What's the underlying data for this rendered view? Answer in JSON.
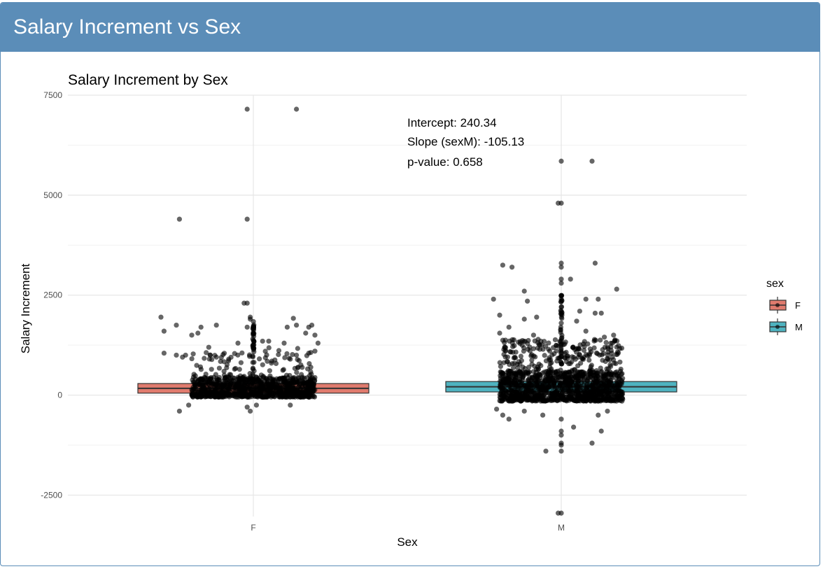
{
  "header": {
    "title": "Salary Increment vs Sex"
  },
  "chart_data": {
    "type": "boxplot",
    "title": "Salary Increment by Sex",
    "xlabel": "Sex",
    "ylabel": "Salary Increment",
    "categories": [
      "F",
      "M"
    ],
    "ylim": [
      -3000,
      7500
    ],
    "yticks": [
      -2500,
      0,
      2500,
      5000,
      7500
    ],
    "grid": true,
    "legend": {
      "title": "sex",
      "position": "right",
      "entries": [
        "F",
        "M"
      ]
    },
    "colors": {
      "F": "#e07b6e",
      "M": "#4fb3c0",
      "points": "#000000"
    },
    "boxes": [
      {
        "category": "F",
        "q1": 50,
        "median": 170,
        "q3": 290
      },
      {
        "category": "M",
        "q1": 80,
        "median": 210,
        "q3": 340
      }
    ],
    "annotations": [
      "Intercept: 240.34",
      "Slope (sexM): -105.13",
      "p-value: 0.658"
    ],
    "outliers": {
      "F": [
        [
          -0.02,
          7150
        ],
        [
          0.14,
          7150
        ],
        [
          -0.24,
          4400
        ],
        [
          -0.02,
          4400
        ],
        [
          -0.03,
          2300
        ],
        [
          -0.02,
          2300
        ],
        [
          -0.3,
          1950
        ],
        [
          -0.01,
          1950
        ],
        [
          -0.01,
          1900
        ],
        [
          0.13,
          1920
        ],
        [
          0.14,
          1750
        ],
        [
          0.18,
          1700
        ],
        [
          0.19,
          1750
        ],
        [
          -0.25,
          1750
        ],
        [
          -0.17,
          1700
        ],
        [
          -0.12,
          1750
        ],
        [
          -0.02,
          1700
        ],
        [
          0.11,
          1700
        ],
        [
          -0.29,
          1600
        ],
        [
          -0.2,
          1500
        ],
        [
          -0.18,
          1550
        ],
        [
          0.17,
          1550
        ],
        [
          0.2,
          1500
        ],
        [
          -0.05,
          1300
        ],
        [
          0.03,
          1350
        ],
        [
          0.05,
          1350
        ],
        [
          0.1,
          1300
        ],
        [
          0.21,
          1300
        ],
        [
          -0.29,
          1050
        ],
        [
          -0.25,
          1000
        ],
        [
          -0.23,
          950
        ],
        [
          -0.22,
          1000
        ],
        [
          -0.14,
          1000
        ],
        [
          -0.12,
          950
        ],
        [
          0.2,
          1100
        ],
        [
          0.18,
          1050
        ],
        [
          0.14,
          1000
        ],
        [
          0.12,
          900
        ],
        [
          0.06,
          850
        ],
        [
          -0.08,
          900
        ],
        [
          -0.24,
          -400
        ],
        [
          -0.21,
          -250
        ],
        [
          -0.02,
          -300
        ],
        [
          -0.01,
          -400
        ],
        [
          0.01,
          -250
        ],
        [
          0.12,
          -250
        ]
      ],
      "M": [
        [
          0.0,
          5850
        ],
        [
          0.1,
          5850
        ],
        [
          -0.01,
          4800
        ],
        [
          0.0,
          4800
        ],
        [
          -0.19,
          3250
        ],
        [
          -0.16,
          3200
        ],
        [
          0.0,
          3300
        ],
        [
          0.0,
          3200
        ],
        [
          0.11,
          3300
        ],
        [
          0.0,
          2900
        ],
        [
          0.03,
          2900
        ],
        [
          0.0,
          2800
        ],
        [
          -0.12,
          2600
        ],
        [
          0.18,
          2650
        ],
        [
          -0.22,
          2400
        ],
        [
          -0.11,
          2350
        ],
        [
          0.0,
          2400
        ],
        [
          0.08,
          2400
        ],
        [
          0.12,
          2400
        ],
        [
          -0.2,
          2000
        ],
        [
          -0.08,
          1950
        ],
        [
          -0.12,
          1900
        ],
        [
          0.06,
          2100
        ],
        [
          0.11,
          2050
        ],
        [
          0.13,
          2050
        ],
        [
          0.0,
          2200
        ],
        [
          0.0,
          2100
        ],
        [
          0.0,
          1800
        ],
        [
          0.05,
          1850
        ],
        [
          -0.2,
          1550
        ],
        [
          -0.17,
          1700
        ],
        [
          -0.09,
          1500
        ],
        [
          0.08,
          1600
        ],
        [
          0.14,
          1450
        ],
        [
          0.17,
          1500
        ],
        [
          -0.21,
          -350
        ],
        [
          -0.19,
          -500
        ],
        [
          -0.17,
          -600
        ],
        [
          -0.12,
          -400
        ],
        [
          -0.06,
          -500
        ],
        [
          0.0,
          -600
        ],
        [
          0.0,
          -900
        ],
        [
          0.0,
          -1000
        ],
        [
          0.0,
          -1200
        ],
        [
          0.04,
          -800
        ],
        [
          0.12,
          -500
        ],
        [
          0.15,
          -400
        ],
        [
          -0.05,
          -1400
        ],
        [
          0.0,
          -1250
        ],
        [
          0.0,
          -1400
        ],
        [
          0.1,
          -1200
        ],
        [
          0.13,
          -900
        ],
        [
          -0.01,
          -2950
        ],
        [
          0.0,
          -2950
        ]
      ]
    }
  }
}
